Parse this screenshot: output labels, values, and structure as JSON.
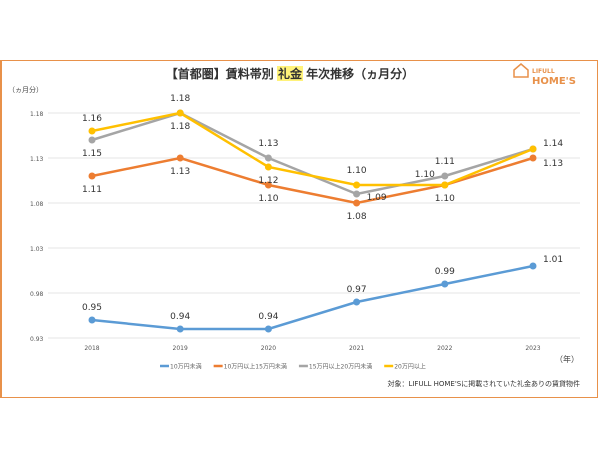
{
  "chart_data": {
    "type": "line",
    "title": "【首都圏】賃料帯別 礼金 年次推移（ヵ月分）",
    "title_parts": {
      "pre": "【首都圏】賃料帯別 ",
      "highlight": "礼金",
      "post": " 年次推移（ヵ月分）"
    },
    "ylabel": "（ヵ月分）",
    "xlabel": "（年）",
    "ylim": [
      0.93,
      1.18
    ],
    "yticks": [
      "0.93",
      "0.98",
      "1.03",
      "1.08",
      "1.13",
      "1.18"
    ],
    "categories": [
      "2018",
      "2019",
      "2020",
      "2021",
      "2022",
      "2023"
    ],
    "grid": true,
    "legend_position": "bottom",
    "series": [
      {
        "name": "10万円未満",
        "color": "#5b9bd5",
        "values": [
          0.95,
          0.94,
          0.94,
          0.97,
          0.99,
          1.01
        ]
      },
      {
        "name": "10万円以上15万円未満",
        "color": "#ed7d31",
        "values": [
          1.11,
          1.13,
          1.1,
          1.08,
          1.1,
          1.13
        ]
      },
      {
        "name": "15万円以上20万円未満",
        "color": "#a5a5a5",
        "values": [
          1.15,
          1.18,
          1.13,
          1.09,
          1.11,
          1.14
        ]
      },
      {
        "name": "20万円以上",
        "color": "#ffc000",
        "values": [
          1.16,
          1.18,
          1.12,
          1.1,
          1.1,
          1.14
        ]
      }
    ],
    "note": "対象：LIFULL HOME'Sに掲載されていた礼金ありの賃貸物件"
  },
  "logo": {
    "line1": "LIFULL",
    "line2": "HOME'S",
    "color": "#e8914a"
  }
}
